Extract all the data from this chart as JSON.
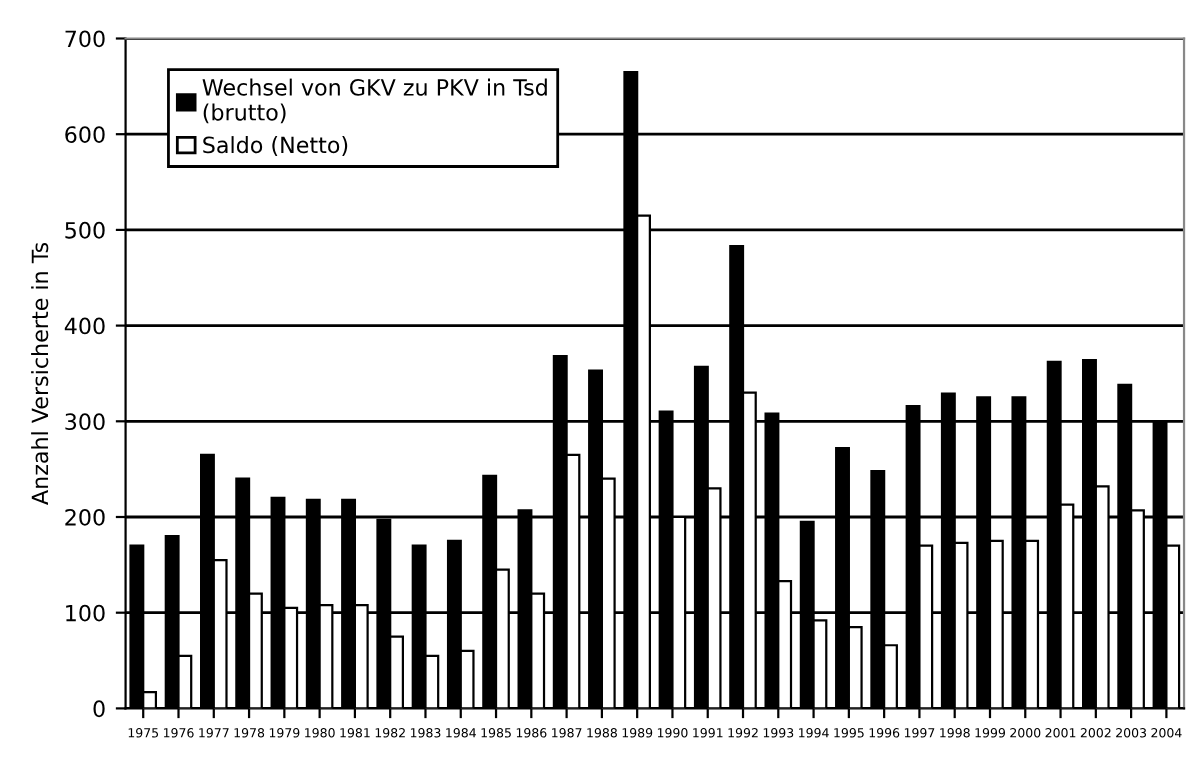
{
  "chart_data": {
    "type": "bar",
    "ylabel": "Anzahl Versicherte in Ts",
    "categories": [
      "1975",
      "1976",
      "1977",
      "1978",
      "1979",
      "1980",
      "1981",
      "1982",
      "1983",
      "1984",
      "1985",
      "1986",
      "1987",
      "1988",
      "1989",
      "1990",
      "1991",
      "1992",
      "1993",
      "1994",
      "1995",
      "1996",
      "1997",
      "1998",
      "1999",
      "2000",
      "2001",
      "2002",
      "2003",
      "2004"
    ],
    "series": [
      {
        "name": "Wechsel von GKV zu PKV in Tsd\n(brutto)",
        "color": "#000000",
        "values": [
          170,
          180,
          265,
          240,
          220,
          218,
          218,
          197,
          170,
          175,
          243,
          207,
          368,
          353,
          665,
          310,
          357,
          483,
          308,
          195,
          272,
          248,
          316,
          329,
          325,
          325,
          362,
          364,
          338,
          300
        ]
      },
      {
        "name": "Saldo (Netto)",
        "color": "#ffffff",
        "values": [
          17,
          55,
          155,
          120,
          105,
          108,
          108,
          75,
          55,
          60,
          145,
          120,
          265,
          240,
          515,
          200,
          230,
          330,
          133,
          92,
          85,
          66,
          170,
          173,
          175,
          175,
          213,
          232,
          207,
          170
        ]
      }
    ],
    "ylim": [
      0,
      700
    ],
    "yticks": [
      0,
      100,
      200,
      300,
      400,
      500,
      600,
      700
    ],
    "grid": "y",
    "legend": "top left"
  }
}
